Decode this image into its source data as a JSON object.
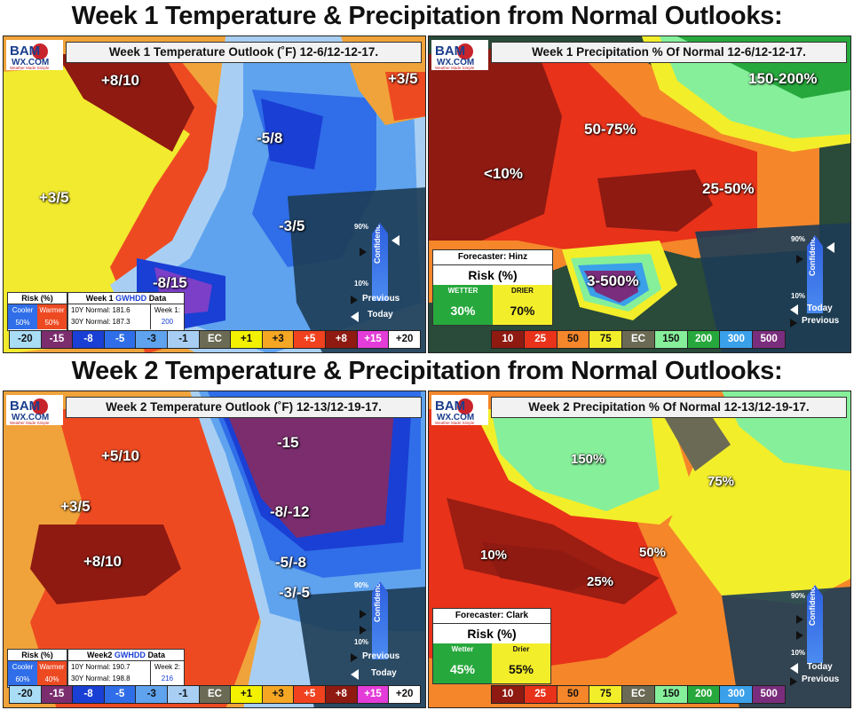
{
  "headings": {
    "week1": "Week 1 Temperature & Precipitation from Normal Outlooks:",
    "week2": "Week 2 Temperature & Precipitation from Normal Outlooks:"
  },
  "logo": {
    "line1": "BAM",
    "line2": "WX.COM",
    "tag": "Weather Made Simple"
  },
  "confidence": {
    "label": "Confidence",
    "high": "90%",
    "low": "10%",
    "previous": "Previous",
    "today": "Today"
  },
  "w1t": {
    "title": "Week 1 Temperature Outlook (˚F) 12-6/12-12-17.",
    "labels": [
      "+8/10",
      "+3/5",
      "-5/8",
      "+3/5",
      "-3/5",
      "-8/15"
    ],
    "risk": {
      "title": "Risk (%)",
      "cooler": "Cooler",
      "warmer": "Warmer",
      "cooler_val": "50%",
      "warmer_val": "50%"
    },
    "data": {
      "title_a": "Week 1",
      "title_b": "GWHDD",
      "title_c": "Data",
      "n10": "10Y Normal: 181.6",
      "n30": "30Y Normal: 187.3",
      "wk_label": "Week 1:",
      "wk_val": "200"
    }
  },
  "w1p": {
    "title": "Week 1 Precipitation % Of Normal 12-6/12-12-17.",
    "labels": [
      "150-200%",
      "50-75%",
      "<10%",
      "25-50%",
      "3-500%"
    ],
    "forecaster": "Forecaster: Hinz",
    "risk": "Risk (%)",
    "wetter": "WETTER",
    "drier": "DRIER",
    "wetter_val": "30%",
    "drier_val": "70%"
  },
  "w2t": {
    "title": "Week 2 Temperature Outlook (˚F) 12-13/12-19-17.",
    "labels": [
      "+5/10",
      "-15",
      "+3/5",
      "-8/-12",
      "+8/10",
      "-5/-8",
      "-3/-5"
    ],
    "risk": {
      "title": "Risk (%)",
      "cooler": "Cooler",
      "warmer": "Warmer",
      "cooler_val": "60%",
      "warmer_val": "40%"
    },
    "data": {
      "title_a": "Week2",
      "title_b": "GWHDD",
      "title_c": "Data",
      "n10": "10Y Normal: 190.7",
      "n30": "30Y Normal: 198.8",
      "wk_label": "Week 2:",
      "wk_val": "216"
    }
  },
  "w2p": {
    "title": "Week 2 Precipitation % Of Normal 12-13/12-19-17.",
    "labels": [
      "150%",
      "75%",
      "10%",
      "50%",
      "25%"
    ],
    "forecaster": "Forecaster: Clark",
    "risk": "Risk (%)",
    "wetter": "Wetter",
    "drier": "Drier",
    "wetter_val": "45%",
    "drier_val": "55%"
  },
  "temp_legend": [
    {
      "t": "-20",
      "c": "#a9dcf5"
    },
    {
      "t": "-15",
      "c": "#7b2d6e",
      "fg": "#fff"
    },
    {
      "t": "-8",
      "c": "#1a3fd4",
      "fg": "#fff"
    },
    {
      "t": "-5",
      "c": "#2f6ee8",
      "fg": "#fff"
    },
    {
      "t": "-3",
      "c": "#5fa3ef"
    },
    {
      "t": "-1",
      "c": "#a8cff3"
    },
    {
      "t": "EC",
      "c": "#6b6b55",
      "fg": "#fff"
    },
    {
      "t": "+1",
      "c": "#f3f000"
    },
    {
      "t": "+3",
      "c": "#f5a623"
    },
    {
      "t": "+5",
      "c": "#f0421e",
      "fg": "#fff"
    },
    {
      "t": "+8",
      "c": "#8e1a12",
      "fg": "#fff"
    },
    {
      "t": "+15",
      "c": "#e43cd8",
      "fg": "#fff"
    },
    {
      "t": "+20",
      "c": "#ffffff"
    }
  ],
  "precip_legend": [
    {
      "t": "10",
      "c": "#8e1a12",
      "fg": "#fff"
    },
    {
      "t": "25",
      "c": "#e8321a",
      "fg": "#fff"
    },
    {
      "t": "50",
      "c": "#f5862a"
    },
    {
      "t": "75",
      "c": "#f3ee2a"
    },
    {
      "t": "EC",
      "c": "#6b6b55",
      "fg": "#fff"
    },
    {
      "t": "150",
      "c": "#86ef9a"
    },
    {
      "t": "200",
      "c": "#27a83c",
      "fg": "#fff"
    },
    {
      "t": "300",
      "c": "#3aa0ea",
      "fg": "#fff"
    },
    {
      "t": "500",
      "c": "#7a2d7c",
      "fg": "#fff"
    }
  ]
}
